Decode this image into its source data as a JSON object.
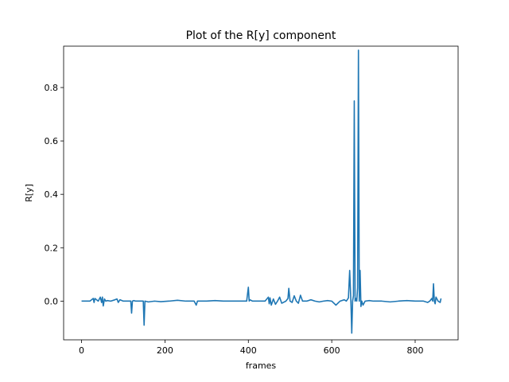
{
  "chart_data": {
    "type": "line",
    "title": "Plot of the R[y] component",
    "xlabel": "frames",
    "ylabel": "R[y]",
    "xlim": [
      -43,
      903
    ],
    "ylim": [
      -0.145,
      0.955
    ],
    "xticks": [
      0,
      200,
      400,
      600,
      800
    ],
    "yticks": [
      0.0,
      0.2,
      0.4,
      0.6,
      0.8
    ],
    "ytick_labels": [
      "0.0",
      "0.2",
      "0.4",
      "0.6",
      "0.8"
    ],
    "grid": false,
    "line_color": "#1f77b4",
    "series": [
      {
        "x": [
          0,
          10,
          20,
          28,
          30,
          32,
          40,
          45,
          48,
          50,
          52,
          55,
          58,
          62,
          70,
          80,
          85,
          88,
          92,
          100,
          110,
          118,
          120,
          122,
          125,
          130,
          140,
          148,
          150,
          152,
          160,
          175,
          190,
          210,
          230,
          250,
          270,
          275,
          278,
          300,
          320,
          340,
          360,
          380,
          396,
          400,
          402,
          404,
          410,
          420,
          440,
          448,
          450,
          452,
          455,
          460,
          465,
          470,
          475,
          480,
          490,
          495,
          497,
          500,
          505,
          510,
          515,
          520,
          525,
          530,
          540,
          550,
          560,
          570,
          580,
          590,
          600,
          610,
          620,
          630,
          635,
          640,
          643,
          646,
          648,
          650,
          652,
          654,
          656,
          658,
          660,
          662,
          664,
          666,
          668,
          670,
          672,
          675,
          680,
          690,
          700,
          720,
          740,
          760,
          780,
          800,
          820,
          830,
          835,
          840,
          842,
          844,
          846,
          848,
          850,
          855,
          860,
          862
        ],
        "y": [
          0.0,
          0.0,
          0.0,
          0.01,
          -0.005,
          0.01,
          0.0,
          0.015,
          -0.005,
          0.015,
          -0.018,
          0.008,
          0.0,
          0.002,
          0.0,
          0.005,
          0.008,
          -0.005,
          0.005,
          0.0,
          0.0,
          0.0,
          -0.045,
          0.0,
          0.002,
          0.0,
          0.0,
          0.0,
          -0.09,
          0.0,
          -0.003,
          0.0,
          -0.002,
          0.0,
          0.003,
          0.0,
          0.0,
          -0.015,
          0.0,
          0.0,
          0.002,
          0.0,
          0.0,
          0.0,
          0.0,
          0.052,
          0.0,
          0.005,
          0.0,
          0.0,
          0.0,
          0.015,
          -0.01,
          0.012,
          -0.015,
          0.008,
          -0.012,
          0.0,
          0.015,
          -0.008,
          0.0,
          0.01,
          0.048,
          0.0,
          -0.005,
          0.02,
          0.0,
          -0.008,
          0.022,
          0.0,
          0.0,
          0.005,
          0.0,
          -0.003,
          0.0,
          0.002,
          0.0,
          -0.015,
          0.0,
          0.005,
          0.0,
          0.012,
          0.115,
          -0.005,
          -0.12,
          0.0,
          0.02,
          0.75,
          0.0,
          0.01,
          0.0,
          0.05,
          0.94,
          0.0,
          0.115,
          -0.02,
          0.0,
          -0.015,
          0.0,
          0.002,
          0.0,
          0.0,
          -0.003,
          0.0,
          0.002,
          0.0,
          0.0,
          -0.005,
          0.0,
          0.01,
          0.0,
          0.065,
          0.0,
          -0.01,
          0.015,
          0.0,
          -0.005,
          0.01
        ]
      }
    ]
  }
}
